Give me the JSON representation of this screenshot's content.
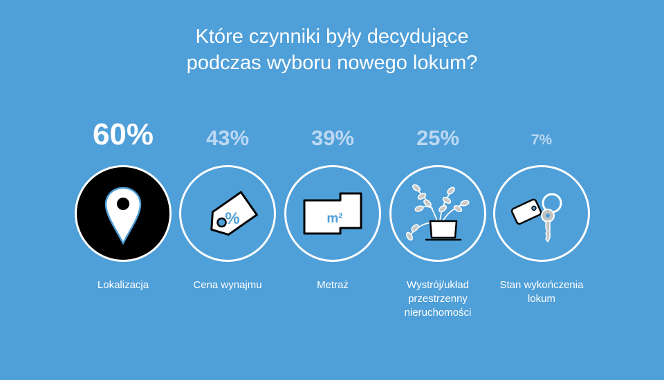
{
  "title": {
    "line1": "Które czynniki były decydujące",
    "line2": "podczas wyboru nowego lokum?"
  },
  "colors": {
    "background": "#4f9fd8",
    "highlight": "#ffffff",
    "muted": "#bcd8f2",
    "icon_fill": "#ffffff",
    "icon_stroke": "#000000",
    "plant_leaves": "#c9c9c9",
    "key_color": "#c4c4c4"
  },
  "chart_data": {
    "type": "table",
    "categories": [
      "Lokalizacja",
      "Cena wynajmu",
      "Metraż",
      "Wystrój/układ przestrzenny nieruchomości",
      "Stan wykończenia lokum"
    ],
    "values": [
      60,
      43,
      39,
      25,
      7
    ],
    "unit": "%",
    "title": "Które czynniki były decydujące podczas wyboru nowego lokum?"
  },
  "items": [
    {
      "percent": "60%",
      "label_lines": [
        "Lokalizacja"
      ],
      "icon": "location-pin-icon",
      "highlight": true
    },
    {
      "percent": "43%",
      "label_lines": [
        "Cena wynajmu"
      ],
      "icon": "price-tag-icon",
      "icon_text": "%"
    },
    {
      "percent": "39%",
      "label_lines": [
        "Metraż"
      ],
      "icon": "floor-plan-icon",
      "icon_text": "m²"
    },
    {
      "percent": "25%",
      "label_lines": [
        "Wystrój/układ",
        "przestrzenny",
        "nieruchomości"
      ],
      "icon": "plant-icon"
    },
    {
      "percent": "7%",
      "label_lines": [
        "Stan wykończenia",
        "lokum"
      ],
      "icon": "key-icon"
    }
  ]
}
